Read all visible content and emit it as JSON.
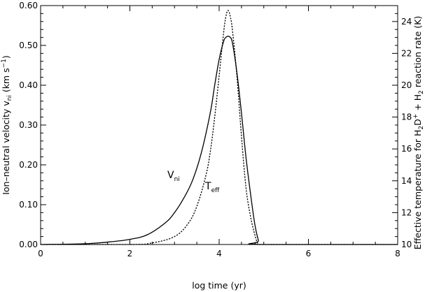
{
  "chart_data": {
    "type": "line",
    "title": "",
    "xlabel": "log time (yr)",
    "ylabel_left": "Ion–neutral velocity v",
    "ylabel_left_sub": "ni",
    "ylabel_left_units": " (km s",
    "ylabel_left_sup": "−1",
    "ylabel_left_close": ")",
    "ylabel_right": "Effective temperature for H",
    "ylabel_right_sub1": "2",
    "ylabel_right_mid": "D",
    "ylabel_right_sup": "+",
    "ylabel_right_mid2": " + H",
    "ylabel_right_sub2": "2",
    "ylabel_right_end": " reaction rate (K)",
    "xlim": [
      0,
      8
    ],
    "ylim_left": [
      0,
      0.6
    ],
    "ylim_right": [
      10,
      25
    ],
    "x_ticks": [
      0,
      2,
      4,
      6,
      8
    ],
    "x_tick_labels": [
      "0",
      "2",
      "4",
      "6",
      "8"
    ],
    "y_left_ticks": [
      0,
      0.1,
      0.2,
      0.3,
      0.4,
      0.5,
      0.6
    ],
    "y_left_tick_labels": [
      "0.00",
      "0.10",
      "0.20",
      "0.30",
      "0.40",
      "0.50",
      "0.60"
    ],
    "y_right_ticks": [
      10,
      12,
      14,
      16,
      18,
      20,
      22,
      24
    ],
    "y_right_tick_labels": [
      "10",
      "12",
      "14",
      "16",
      "18",
      "20",
      "22",
      "24"
    ],
    "grid": false,
    "series": [
      {
        "name": "V",
        "name_sub": "ni",
        "axis": "left",
        "style": "solid",
        "color": "#000000",
        "x": [
          0,
          1.0,
          1.5,
          2.0,
          2.4,
          2.8,
          3.0,
          3.2,
          3.4,
          3.6,
          3.8,
          3.9,
          4.0,
          4.1,
          4.15,
          4.2,
          4.25,
          4.3,
          4.4,
          4.5,
          4.6,
          4.7,
          4.8,
          4.88,
          4.92,
          8.0
        ],
        "y": [
          0.0,
          0.002,
          0.006,
          0.013,
          0.025,
          0.055,
          0.08,
          0.115,
          0.16,
          0.23,
          0.33,
          0.4,
          0.465,
          0.51,
          0.52,
          0.523,
          0.52,
          0.505,
          0.43,
          0.33,
          0.22,
          0.13,
          0.05,
          0.01,
          0.0,
          0.0
        ]
      },
      {
        "name": "T",
        "name_sub": "eff",
        "axis": "right",
        "style": "dashed",
        "color": "#000000",
        "x": [
          0,
          2.0,
          2.5,
          3.0,
          3.3,
          3.5,
          3.7,
          3.8,
          3.9,
          4.0,
          4.1,
          4.15,
          4.2,
          4.25,
          4.3,
          4.4,
          4.5,
          4.6,
          4.7,
          4.8,
          4.86,
          4.9,
          8.0
        ],
        "y": [
          10.0,
          10.0,
          10.1,
          10.5,
          11.3,
          12.4,
          14.3,
          15.8,
          18.0,
          20.6,
          23.3,
          24.3,
          24.7,
          24.3,
          23.4,
          20.5,
          16.8,
          13.6,
          11.8,
          10.6,
          10.1,
          10.0,
          10.0
        ]
      }
    ]
  }
}
